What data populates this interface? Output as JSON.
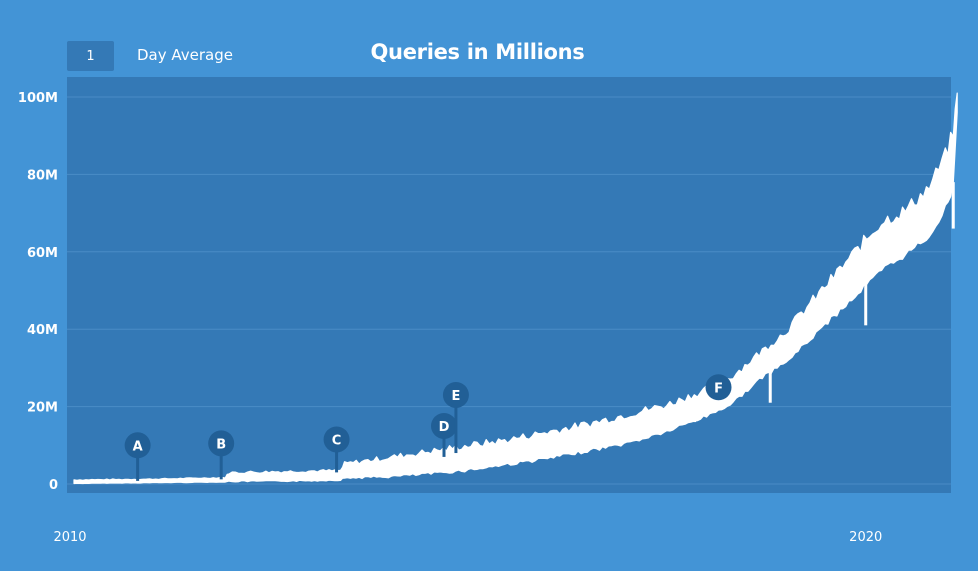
{
  "controls": {
    "average_value": "1",
    "average_label": "Day Average"
  },
  "chart_data": {
    "type": "area",
    "title": "Queries in Millions",
    "xlabel": "",
    "ylabel": "",
    "xlim": [
      2010,
      2021.7
    ],
    "ylim": [
      0,
      103
    ],
    "grid": true,
    "y_ticks": [
      {
        "value": 0,
        "label": "0"
      },
      {
        "value": 20,
        "label": "20M"
      },
      {
        "value": 40,
        "label": "40M"
      },
      {
        "value": 60,
        "label": "60M"
      },
      {
        "value": 80,
        "label": "80M"
      },
      {
        "value": 100,
        "label": "100M"
      }
    ],
    "x_ticks": [
      {
        "value": 2010,
        "label": "2010"
      },
      {
        "value": 2020,
        "label": "2020"
      }
    ],
    "series": [
      {
        "color": "#ffffff",
        "points": [
          {
            "x": 2010.05,
            "low": 0.2,
            "high": 1.0
          },
          {
            "x": 2010.5,
            "low": 0.3,
            "high": 1.1
          },
          {
            "x": 2011.0,
            "low": 0.4,
            "high": 1.2
          },
          {
            "x": 2011.5,
            "low": 0.5,
            "high": 1.4
          },
          {
            "x": 2011.95,
            "low": 0.6,
            "high": 1.6
          },
          {
            "x": 2012.0,
            "low": 0.8,
            "high": 2.8
          },
          {
            "x": 2012.5,
            "low": 0.9,
            "high": 3.0
          },
          {
            "x": 2013.0,
            "low": 1.0,
            "high": 3.2
          },
          {
            "x": 2013.4,
            "low": 1.2,
            "high": 3.3
          },
          {
            "x": 2013.45,
            "low": 1.8,
            "high": 5.0
          },
          {
            "x": 2014.0,
            "low": 2.2,
            "high": 6.5
          },
          {
            "x": 2014.5,
            "low": 3.0,
            "high": 8.0
          },
          {
            "x": 2015.0,
            "low": 4.0,
            "high": 9.5
          },
          {
            "x": 2015.5,
            "low": 5.5,
            "high": 11.0
          },
          {
            "x": 2016.0,
            "low": 7.0,
            "high": 13.0
          },
          {
            "x": 2016.5,
            "low": 9.0,
            "high": 15.0
          },
          {
            "x": 2017.0,
            "low": 11.0,
            "high": 17.5
          },
          {
            "x": 2017.5,
            "low": 14.0,
            "high": 20.0
          },
          {
            "x": 2018.0,
            "low": 18.0,
            "high": 24.0
          },
          {
            "x": 2018.3,
            "low": 21.0,
            "high": 27.0
          },
          {
            "x": 2018.7,
            "low": 28.0,
            "high": 34.0
          },
          {
            "x": 2019.0,
            "low": 32.0,
            "high": 39.0
          },
          {
            "x": 2019.3,
            "low": 38.0,
            "high": 46.0
          },
          {
            "x": 2019.6,
            "low": 44.0,
            "high": 53.0
          },
          {
            "x": 2019.9,
            "low": 50.0,
            "high": 60.0
          },
          {
            "x": 2020.2,
            "low": 56.0,
            "high": 67.0
          },
          {
            "x": 2020.5,
            "low": 60.0,
            "high": 70.0
          },
          {
            "x": 2020.8,
            "low": 65.0,
            "high": 76.0
          },
          {
            "x": 2021.0,
            "low": 72.0,
            "high": 84.0
          },
          {
            "x": 2021.1,
            "low": 78.0,
            "high": 90.0
          },
          {
            "x": 2021.15,
            "low": 96.0,
            "high": 101.0
          }
        ],
        "dips": [
          {
            "x": 2016.75,
            "value": 10.0
          },
          {
            "x": 2017.85,
            "value": 16.0
          },
          {
            "x": 2018.8,
            "value": 21.0
          },
          {
            "x": 2020.0,
            "value": 41.0
          },
          {
            "x": 2021.1,
            "value": 66.0
          }
        ]
      }
    ],
    "annotations": [
      {
        "label": "A",
        "x": 2010.85,
        "y": 0.8,
        "marker_y": 10.0
      },
      {
        "label": "B",
        "x": 2011.9,
        "y": 1.2,
        "marker_y": 10.5
      },
      {
        "label": "C",
        "x": 2013.35,
        "y": 3.0,
        "marker_y": 11.5
      },
      {
        "label": "D",
        "x": 2014.7,
        "y": 7.0,
        "marker_y": 15.0
      },
      {
        "label": "E",
        "x": 2014.85,
        "y": 8.0,
        "marker_y": 23.0
      },
      {
        "label": "F",
        "x": 2018.15,
        "y": 22.0,
        "marker_y": 25.0
      }
    ],
    "colors": {
      "page_background": "#4394d6",
      "plot_background": "#3479b6",
      "marker_fill": "#215f96",
      "gridline": "#4a8cc6"
    }
  }
}
